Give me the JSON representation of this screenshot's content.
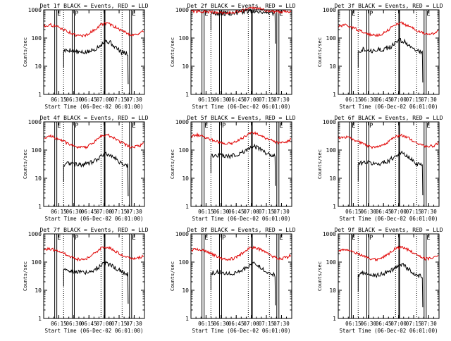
{
  "colors": {
    "events": "#000000",
    "lld": "#e00000",
    "axes": "#000000",
    "background": "#ffffff"
  },
  "chart_data": {
    "type": "line",
    "layout": "3x3 grid",
    "shared": {
      "ylabel": "Counts/sec",
      "ylim": [
        1,
        1000
      ],
      "yscale": "log",
      "ytick_values": [
        1,
        10,
        100,
        1000
      ],
      "ytick_labels": [
        "1",
        "10",
        "100",
        "1000"
      ],
      "xlim": [
        6.0,
        7.67
      ],
      "xtick_values": [
        6.25,
        6.5,
        6.75,
        7.0,
        7.25,
        7.5
      ],
      "xtick_labels": [
        "06:15",
        "06:30",
        "06:45",
        "07:00",
        "07:15",
        "07:30"
      ],
      "xlabel": "Start Time (06-Dec-02 06:01:00)",
      "vertical_markers": [
        {
          "label": "E",
          "x": 6.2,
          "style": "double"
        },
        {
          "label": "",
          "x": 6.33,
          "style": "dotted"
        },
        {
          "label": "P",
          "x": 6.49,
          "style": "double"
        },
        {
          "label": "",
          "x": 6.95,
          "style": "dotted"
        },
        {
          "label": "",
          "x": 7.01,
          "style": "solid-thick"
        },
        {
          "label": "",
          "x": 7.3,
          "style": "dotted"
        },
        {
          "label": "E",
          "x": 7.44,
          "style": "double"
        }
      ]
    },
    "panels": [
      {
        "title": "Det 1f BLACK = Events, RED = LLD",
        "series": [
          {
            "name": "Events",
            "color": "#000000",
            "start": 6.33,
            "end": 7.4,
            "x": [
              6.33,
              6.45,
              6.55,
              6.65,
              6.75,
              6.85,
              6.95,
              7.02,
              7.1,
              7.2,
              7.3,
              7.38
            ],
            "y": [
              35,
              38,
              32,
              30,
              33,
              40,
              60,
              80,
              70,
              45,
              30,
              28
            ]
          },
          {
            "name": "LLD",
            "color": "#e00000",
            "start": 6.0,
            "end": 7.66,
            "x": [
              6.0,
              6.1,
              6.25,
              6.4,
              6.55,
              6.7,
              6.85,
              6.95,
              7.05,
              7.15,
              7.3,
              7.45,
              7.6,
              7.66
            ],
            "y": [
              260,
              300,
              240,
              170,
              120,
              125,
              200,
              300,
              340,
              270,
              180,
              130,
              145,
              180
            ]
          }
        ]
      },
      {
        "title": "Det 2f BLACK = Events, RED = LLD",
        "series": [
          {
            "name": "Events",
            "color": "#000000",
            "start": 6.33,
            "end": 7.4,
            "x": [
              6.33,
              6.5,
              6.7,
              6.85,
              7.0,
              7.1,
              7.2,
              7.3,
              7.38
            ],
            "y": [
              750,
              740,
              760,
              850,
              930,
              900,
              820,
              780,
              760
            ]
          },
          {
            "name": "LLD",
            "color": "#e00000",
            "start": 6.0,
            "end": 7.66,
            "x": [
              6.0,
              6.15,
              6.3,
              6.5,
              6.7,
              6.85,
              7.0,
              7.1,
              7.25,
              7.4,
              7.55,
              7.66
            ],
            "y": [
              900,
              880,
              850,
              780,
              800,
              950,
              1150,
              1100,
              950,
              850,
              860,
              900
            ]
          }
        ]
      },
      {
        "title": "Det 3f BLACK = Events, RED = LLD",
        "series": [
          {
            "name": "Events",
            "color": "#000000",
            "start": 6.33,
            "end": 7.4,
            "x": [
              6.33,
              6.45,
              6.55,
              6.65,
              6.75,
              6.85,
              6.95,
              7.02,
              7.1,
              7.2,
              7.3,
              7.38
            ],
            "y": [
              35,
              42,
              35,
              38,
              40,
              45,
              65,
              85,
              75,
              50,
              35,
              32
            ]
          },
          {
            "name": "LLD",
            "color": "#e00000",
            "start": 6.0,
            "end": 7.66,
            "x": [
              6.0,
              6.1,
              6.25,
              6.4,
              6.55,
              6.7,
              6.85,
              6.95,
              7.05,
              7.15,
              7.3,
              7.45,
              7.6,
              7.66
            ],
            "y": [
              250,
              290,
              230,
              165,
              125,
              130,
              210,
              310,
              340,
              280,
              185,
              135,
              150,
              185
            ]
          }
        ]
      },
      {
        "title": "Det 4f BLACK = Events, RED = LLD",
        "series": [
          {
            "name": "Events",
            "color": "#000000",
            "start": 6.33,
            "end": 7.4,
            "x": [
              6.33,
              6.45,
              6.55,
              6.65,
              6.75,
              6.85,
              6.95,
              7.02,
              7.1,
              7.2,
              7.3,
              7.38
            ],
            "y": [
              30,
              35,
              32,
              30,
              34,
              42,
              60,
              80,
              68,
              48,
              32,
              28
            ]
          },
          {
            "name": "LLD",
            "color": "#e00000",
            "start": 6.0,
            "end": 7.66,
            "x": [
              6.0,
              6.1,
              6.25,
              6.4,
              6.55,
              6.7,
              6.85,
              6.95,
              7.05,
              7.15,
              7.3,
              7.45,
              7.6,
              7.66
            ],
            "y": [
              270,
              310,
              250,
              170,
              120,
              125,
              205,
              310,
              350,
              280,
              180,
              125,
              140,
              175
            ]
          }
        ]
      },
      {
        "title": "Det 5f BLACK = Events, RED = LLD",
        "series": [
          {
            "name": "Events",
            "color": "#000000",
            "start": 6.33,
            "end": 7.4,
            "x": [
              6.33,
              6.45,
              6.55,
              6.65,
              6.75,
              6.85,
              6.95,
              7.02,
              7.1,
              7.2,
              7.3,
              7.38
            ],
            "y": [
              60,
              65,
              62,
              60,
              68,
              85,
              110,
              140,
              120,
              90,
              70,
              65
            ]
          },
          {
            "name": "LLD",
            "color": "#e00000",
            "start": 6.0,
            "end": 7.66,
            "x": [
              6.0,
              6.1,
              6.25,
              6.4,
              6.55,
              6.7,
              6.85,
              6.95,
              7.05,
              7.15,
              7.3,
              7.45,
              7.6,
              7.66
            ],
            "y": [
              300,
              350,
              280,
              210,
              170,
              175,
              260,
              380,
              420,
              330,
              230,
              180,
              200,
              240
            ]
          }
        ]
      },
      {
        "title": "Det 6f BLACK = Events, RED = LLD",
        "series": [
          {
            "name": "Events",
            "color": "#000000",
            "start": 6.33,
            "end": 7.4,
            "x": [
              6.33,
              6.45,
              6.55,
              6.65,
              6.75,
              6.85,
              6.95,
              7.02,
              7.1,
              7.2,
              7.3,
              7.38
            ],
            "y": [
              32,
              38,
              34,
              32,
              36,
              44,
              62,
              82,
              70,
              48,
              33,
              30
            ]
          },
          {
            "name": "LLD",
            "color": "#e00000",
            "start": 6.0,
            "end": 7.66,
            "x": [
              6.0,
              6.1,
              6.25,
              6.4,
              6.55,
              6.7,
              6.85,
              6.95,
              7.05,
              7.15,
              7.3,
              7.45,
              7.6,
              7.66
            ],
            "y": [
              260,
              300,
              240,
              170,
              125,
              130,
              205,
              305,
              340,
              275,
              180,
              130,
              145,
              180
            ]
          }
        ]
      },
      {
        "title": "Det 7f BLACK = Events, RED = LLD",
        "series": [
          {
            "name": "Events",
            "color": "#000000",
            "start": 6.33,
            "end": 7.4,
            "x": [
              6.33,
              6.45,
              6.55,
              6.65,
              6.75,
              6.85,
              6.95,
              7.02,
              7.1,
              7.2,
              7.3,
              7.38
            ],
            "y": [
              55,
              50,
              45,
              42,
              45,
              55,
              75,
              90,
              80,
              60,
              45,
              40
            ]
          },
          {
            "name": "LLD",
            "color": "#e00000",
            "start": 6.0,
            "end": 7.66,
            "x": [
              6.0,
              6.1,
              6.25,
              6.4,
              6.55,
              6.7,
              6.85,
              6.95,
              7.05,
              7.15,
              7.3,
              7.45,
              7.6,
              7.66
            ],
            "y": [
              260,
              300,
              245,
              175,
              125,
              130,
              210,
              310,
              340,
              275,
              180,
              130,
              145,
              180
            ]
          }
        ]
      },
      {
        "title": "Det 8f BLACK = Events, RED = LLD",
        "series": [
          {
            "name": "Events",
            "color": "#000000",
            "start": 6.33,
            "end": 7.4,
            "x": [
              6.33,
              6.45,
              6.55,
              6.65,
              6.75,
              6.85,
              6.95,
              7.02,
              7.1,
              7.2,
              7.3,
              7.38
            ],
            "y": [
              40,
              45,
              40,
              38,
              42,
              52,
              70,
              88,
              75,
              55,
              40,
              35
            ]
          },
          {
            "name": "LLD",
            "color": "#e00000",
            "start": 6.0,
            "end": 7.66,
            "x": [
              6.0,
              6.1,
              6.25,
              6.4,
              6.55,
              6.7,
              6.85,
              6.95,
              7.05,
              7.15,
              7.3,
              7.45,
              7.6,
              7.66
            ],
            "y": [
              260,
              300,
              240,
              170,
              125,
              130,
              205,
              310,
              345,
              275,
              180,
              130,
              145,
              180
            ]
          }
        ]
      },
      {
        "title": "Det 9f BLACK = Events, RED = LLD",
        "series": [
          {
            "name": "Events",
            "color": "#000000",
            "start": 6.33,
            "end": 7.4,
            "x": [
              6.33,
              6.45,
              6.55,
              6.65,
              6.75,
              6.85,
              6.95,
              7.02,
              7.1,
              7.2,
              7.3,
              7.38
            ],
            "y": [
              35,
              42,
              36,
              34,
              38,
              46,
              64,
              84,
              72,
              50,
              34,
              30
            ]
          },
          {
            "name": "LLD",
            "color": "#e00000",
            "start": 6.0,
            "end": 7.66,
            "x": [
              6.0,
              6.1,
              6.25,
              6.4,
              6.55,
              6.7,
              6.85,
              6.95,
              7.05,
              7.15,
              7.3,
              7.45,
              7.6,
              7.66
            ],
            "y": [
              255,
              295,
              235,
              168,
              122,
              128,
              205,
              305,
              340,
              275,
              180,
              130,
              145,
              180
            ]
          }
        ]
      }
    ]
  }
}
